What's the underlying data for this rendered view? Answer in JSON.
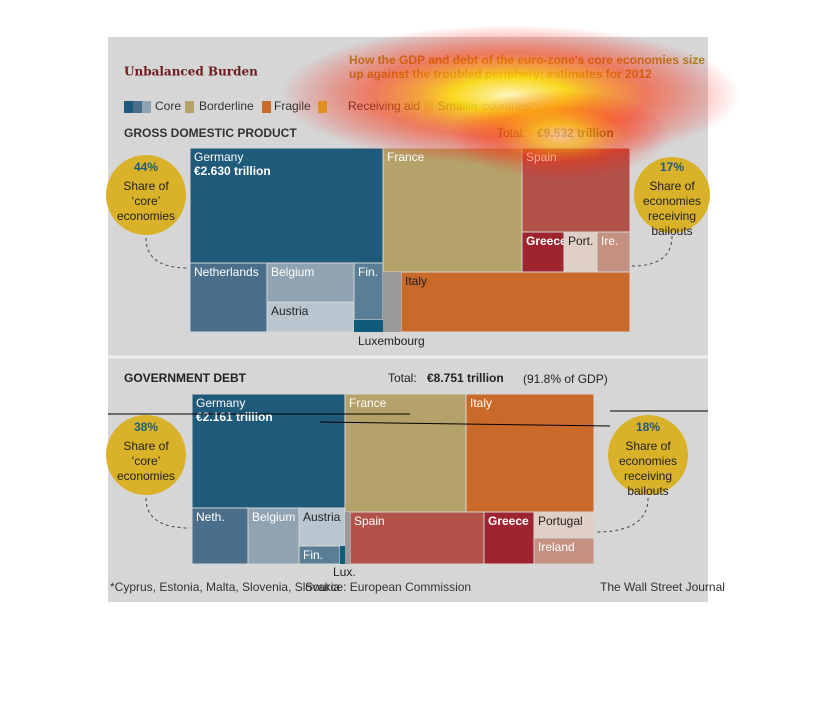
{
  "header": {
    "title": "Unbalanced Burden",
    "subtitle_1": "How the GDP and debt of the euro-zone's core economies size",
    "subtitle_2": "up against the troubled periphery; estimates for 2012"
  },
  "legend": [
    "Core",
    "Borderline",
    "Fragile",
    "Receiving aid",
    "Smaller countries*"
  ],
  "gdp": {
    "heading": "GROSS DOMESTIC PRODUCT",
    "total_label": "Total:",
    "total": "€9.532 trillion",
    "core_share": "44%",
    "core_text": [
      "Share of",
      "‘core’",
      "economies"
    ],
    "aid_share": "17%",
    "aid_text": [
      "Share of",
      "economies",
      "receiving",
      "bailouts"
    ],
    "tiles": [
      {
        "label": "Germany",
        "sub": "€2.630 trillion"
      },
      {
        "label": "France"
      },
      {
        "label": "Spain"
      },
      {
        "label": "Greece"
      },
      {
        "label": "Port."
      },
      {
        "label": "Ire."
      },
      {
        "label": "Netherlands"
      },
      {
        "label": "Belgium"
      },
      {
        "label": "Austria"
      },
      {
        "label": "Fin."
      },
      {
        "label": "Italy"
      }
    ],
    "outside_label": "Luxembourg"
  },
  "debt": {
    "heading": "GOVERNMENT DEBT",
    "total_label": "Total:",
    "total": "€8.751 trillion",
    "total_note": "(91.8% of GDP)",
    "core_share": "38%",
    "core_text": [
      "Share of",
      "‘core’",
      "economies"
    ],
    "aid_share": "18%",
    "aid_text": [
      "Share of",
      "economies",
      "receiving",
      "bailouts"
    ],
    "tiles": [
      {
        "label": "Germany",
        "sub": "€2.161 trillion"
      },
      {
        "label": "France"
      },
      {
        "label": "Italy"
      },
      {
        "label": "Neth."
      },
      {
        "label": "Belgium"
      },
      {
        "label": "Austria"
      },
      {
        "label": "Fin."
      },
      {
        "label": "Spain"
      },
      {
        "label": "Greece"
      },
      {
        "label": "Portugal"
      },
      {
        "label": "Ireland"
      }
    ],
    "outside_label": "Lux."
  },
  "footer": {
    "note": "*Cyprus, Estonia, Malta, Slovenia, Slovakia",
    "source": "Source: European Commission",
    "credit": "The Wall Street Journal"
  }
}
